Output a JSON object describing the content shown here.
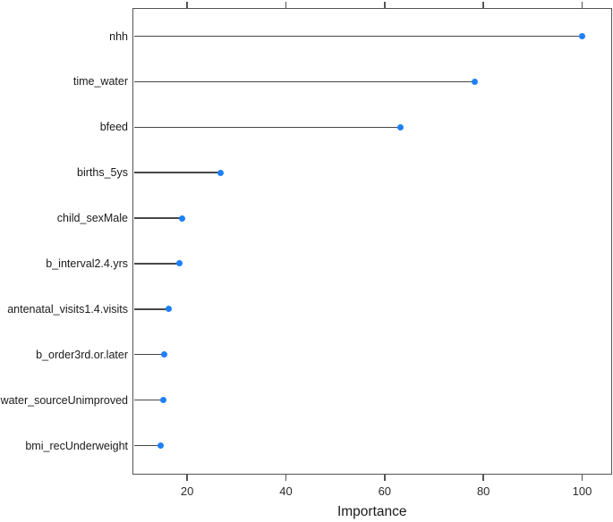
{
  "chart_data": {
    "type": "scatter",
    "variant": "dotplot-lollipop",
    "title": "",
    "xlabel": "Importance",
    "ylabel": "",
    "categories": [
      "nhh",
      "time_water",
      "bfeed",
      "births_5ys",
      "child_sexMale",
      "b_interval2.4.yrs",
      "antenatal_visits1.4.visits",
      "b_order3rd.or.later",
      "water_sourceUnimproved",
      "bmi_recUnderweight"
    ],
    "values": [
      100,
      78.2,
      63.2,
      26.7,
      18.9,
      18.4,
      16.2,
      15.3,
      15.1,
      14.6
    ],
    "xlim": [
      9.2,
      105.7
    ],
    "x_ticks": [
      20,
      40,
      60,
      80,
      100
    ],
    "x_tick_labels": [
      "20",
      "40",
      "60",
      "80",
      "100"
    ],
    "axes_mirrored_ticks_top": true,
    "grid": false,
    "legend": "none",
    "colors": {
      "dot": "#1e80f8",
      "stem": "#474747",
      "frame": "#555555",
      "text": "#1a1a1a",
      "background": "#ffffff"
    }
  }
}
